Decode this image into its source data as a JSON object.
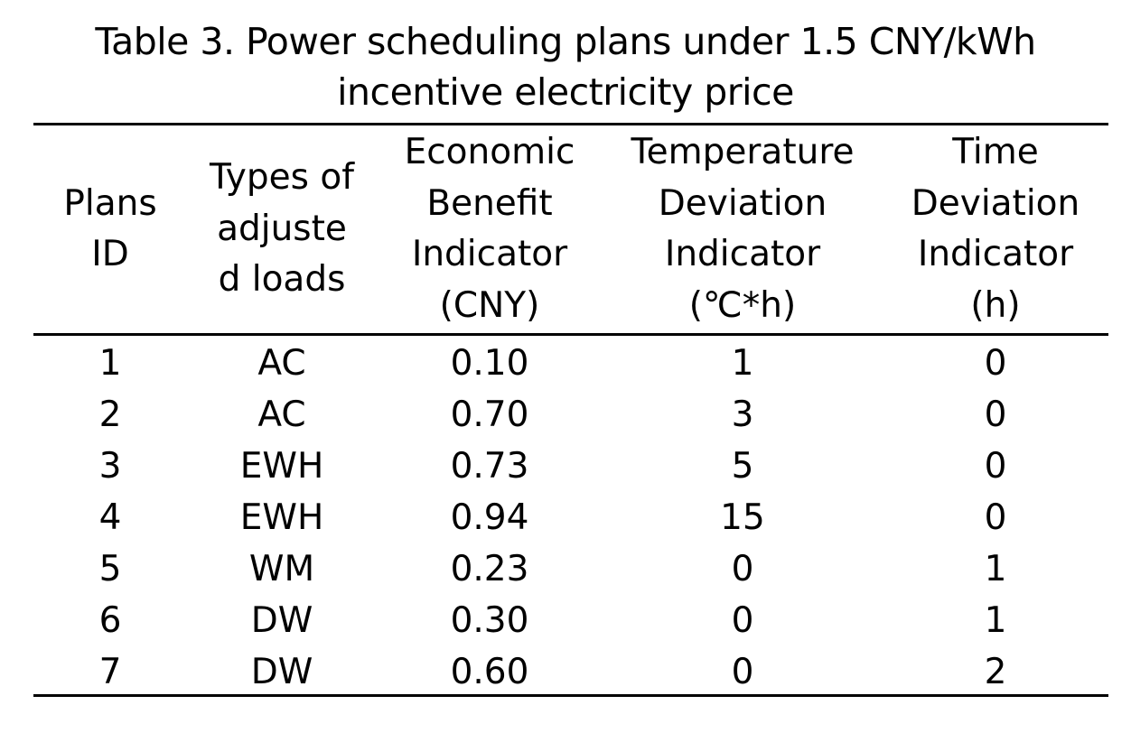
{
  "caption": {
    "line1": "Table 3. Power scheduling plans under 1.5 CNY/kWh",
    "line2": "incentive electricity price"
  },
  "table": {
    "headers": [
      [
        "Plans",
        "ID"
      ],
      [
        "Types of",
        "adjuste",
        "d loads"
      ],
      [
        "Economic",
        "Benefit",
        "Indicator",
        "(CNY)"
      ],
      [
        "Temperature",
        "Deviation",
        "Indicator",
        "(℃*h)"
      ],
      [
        "Time",
        "Deviation",
        "Indicator",
        "(h)"
      ]
    ],
    "rows": [
      [
        "1",
        "AC",
        "0.10",
        "1",
        "0"
      ],
      [
        "2",
        "AC",
        "0.70",
        "3",
        "0"
      ],
      [
        "3",
        "EWH",
        "0.73",
        "5",
        "0"
      ],
      [
        "4",
        "EWH",
        "0.94",
        "15",
        "0"
      ],
      [
        "5",
        "WM",
        "0.23",
        "0",
        "1"
      ],
      [
        "6",
        "DW",
        "0.30",
        "0",
        "1"
      ],
      [
        "7",
        "DW",
        "0.60",
        "0",
        "2"
      ]
    ]
  }
}
